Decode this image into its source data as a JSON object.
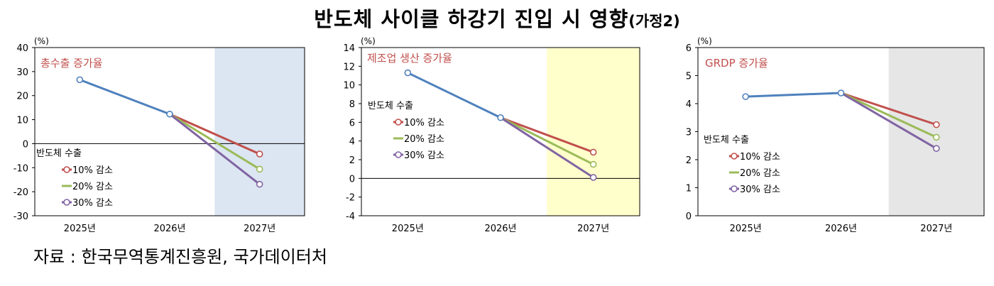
{
  "title": {
    "main": "반도체 사이클 하강기 진입 시 영향",
    "sub": "(가정2)"
  },
  "source": "자료 : 한국무역통계진흥원,  국가데이터처",
  "colors": {
    "base": "#4F81BD",
    "s10": "#C0504D",
    "s20": "#9BBB59",
    "s30": "#8064A2",
    "shade1": "#DCE6F2",
    "shade2": "#FFFFCC",
    "shade3": "#E6E6E6"
  },
  "chart_data": [
    {
      "type": "line",
      "title": "총수출 증가율",
      "unit": "(%)",
      "categories": [
        "2025년",
        "2026년",
        "2027년"
      ],
      "ylim": [
        -30,
        40
      ],
      "yticks": [
        40,
        30,
        20,
        10,
        0,
        -10,
        -20,
        -30
      ],
      "shaded_category": "2027년",
      "legend_title": "반도체 수출",
      "base": [
        26.6,
        12.3
      ],
      "series": [
        {
          "name": "10% 감소",
          "values": [
            null,
            12.3,
            -4.3
          ]
        },
        {
          "name": "20% 감소",
          "values": [
            null,
            12.3,
            -10.6
          ]
        },
        {
          "name": "30% 감소",
          "values": [
            null,
            12.3,
            -16.9
          ]
        }
      ]
    },
    {
      "type": "line",
      "title": "제조업 생산 증가율",
      "unit": "(%)",
      "categories": [
        "2025년",
        "2026년",
        "2027년"
      ],
      "ylim": [
        -4,
        14
      ],
      "yticks": [
        14,
        12,
        10,
        8,
        6,
        4,
        2,
        0,
        -2,
        -4
      ],
      "shaded_category": "2027년",
      "legend_title": "반도체 수출",
      "base": [
        11.3,
        6.5
      ],
      "series": [
        {
          "name": "10% 감소",
          "values": [
            null,
            6.5,
            2.8
          ]
        },
        {
          "name": "20% 감소",
          "values": [
            null,
            6.5,
            1.5
          ]
        },
        {
          "name": "30% 감소",
          "values": [
            null,
            6.5,
            0.1
          ]
        }
      ]
    },
    {
      "type": "line",
      "title": "GRDP 증가율",
      "unit": "(%)",
      "categories": [
        "2025년",
        "2026년",
        "2027년"
      ],
      "ylim": [
        0,
        6
      ],
      "yticks": [
        6,
        5,
        4,
        3,
        2,
        1,
        0
      ],
      "shaded_category": "2027년",
      "legend_title": "반도체 수출",
      "base": [
        4.25,
        4.38
      ],
      "series": [
        {
          "name": "10% 감소",
          "values": [
            null,
            4.38,
            3.25
          ]
        },
        {
          "name": "20% 감소",
          "values": [
            null,
            4.38,
            2.8
          ]
        },
        {
          "name": "30% 감소",
          "values": [
            null,
            4.38,
            2.4
          ]
        }
      ]
    }
  ]
}
